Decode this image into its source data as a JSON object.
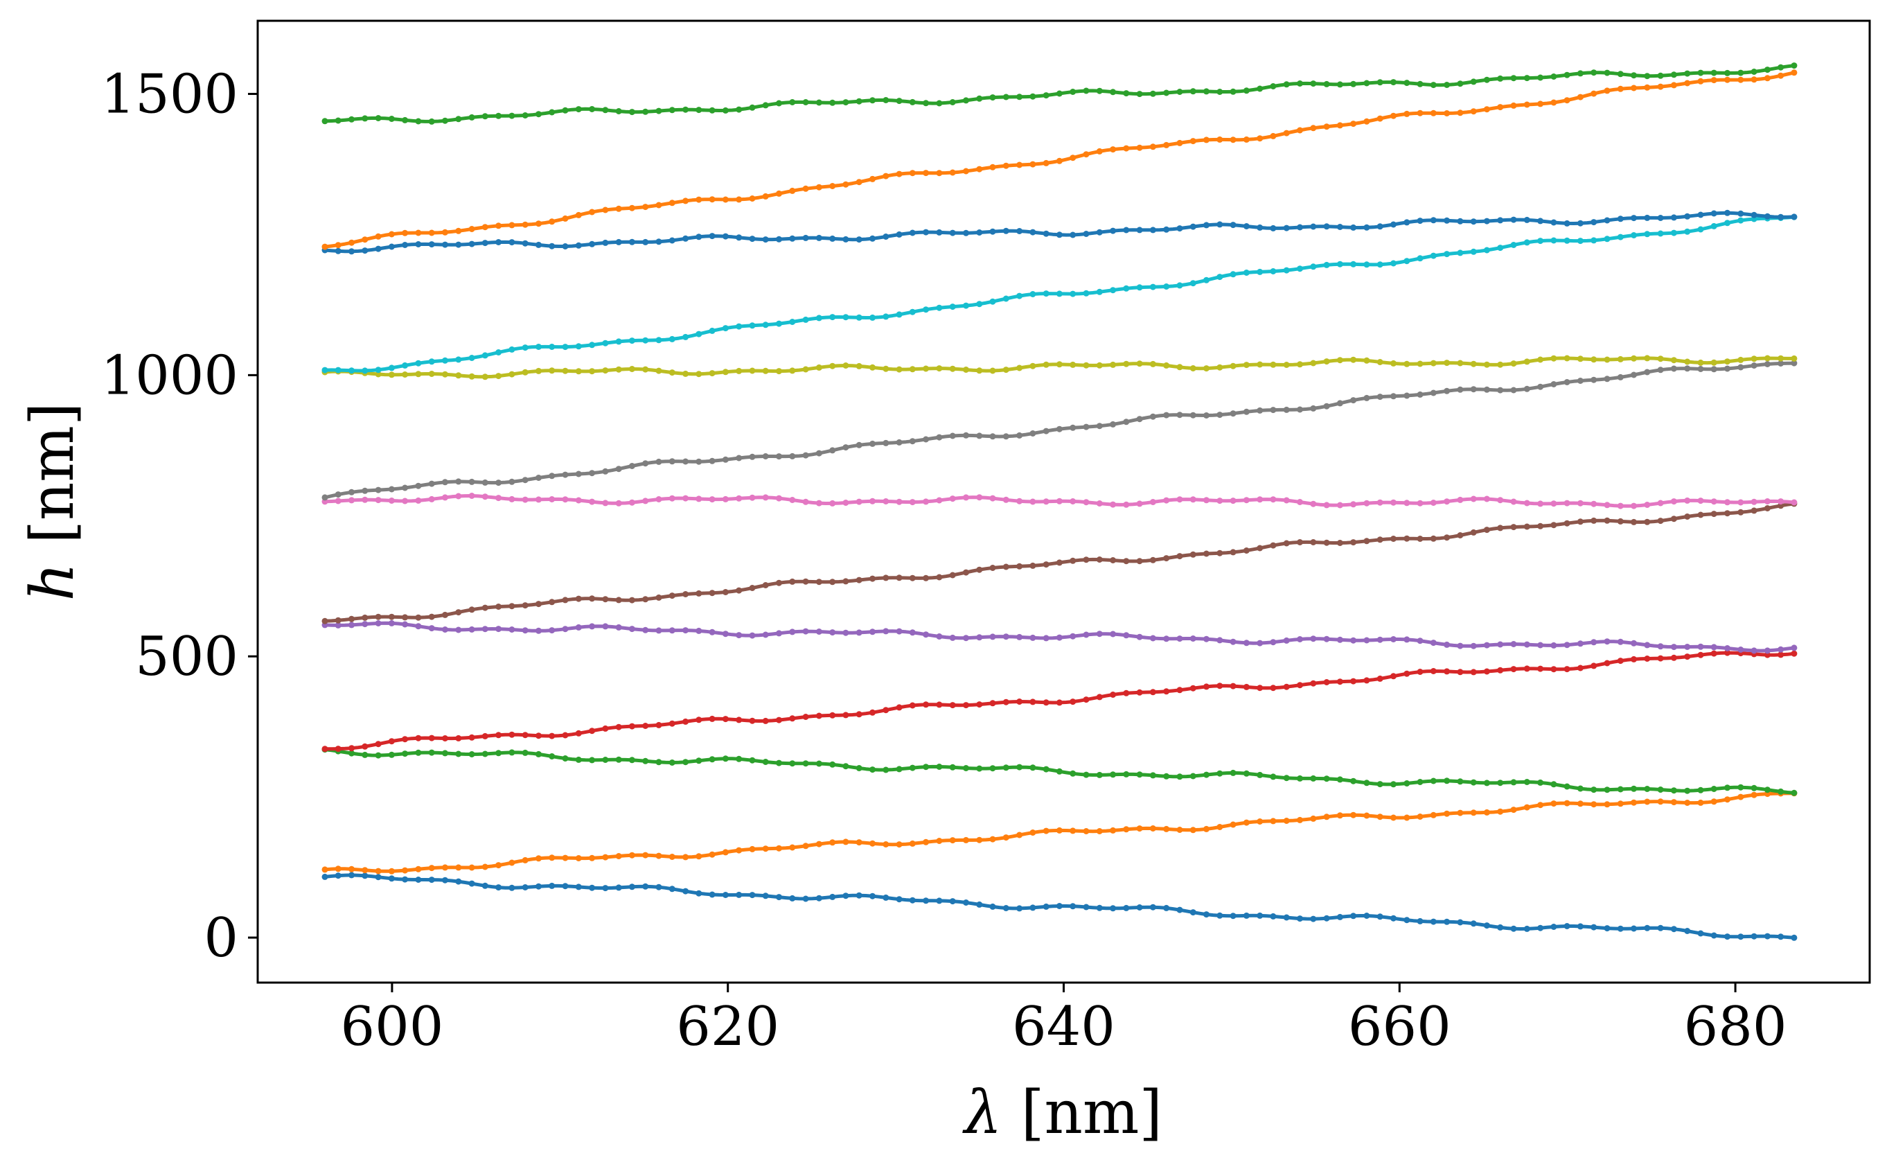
{
  "chart_data": {
    "type": "scatter",
    "xlabel": "λ [nm]",
    "ylabel": "h [nm]",
    "xlabel_symbol": "λ",
    "ylabel_symbol": "h",
    "unit": "[nm]",
    "xlim": [
      592,
      688
    ],
    "ylim": [
      -80,
      1630
    ],
    "xticks": [
      600,
      620,
      640,
      660,
      680
    ],
    "yticks": [
      0,
      500,
      1000,
      1500
    ],
    "grid": false,
    "legend": "none",
    "x_start": 596,
    "x_end": 683.5,
    "series": [
      {
        "color": "#1f77b4",
        "start": 108,
        "end": 2
      },
      {
        "color": "#ff7f0e",
        "start": 115,
        "end": 255
      },
      {
        "color": "#2ca02c",
        "start": 333,
        "end": 258
      },
      {
        "color": "#d62728",
        "start": 338,
        "end": 510
      },
      {
        "color": "#9467bd",
        "start": 555,
        "end": 515
      },
      {
        "color": "#8c564b",
        "start": 562,
        "end": 765
      },
      {
        "color": "#e377c2",
        "start": 780,
        "end": 772
      },
      {
        "color": "#7f7f7f",
        "start": 785,
        "end": 1025
      },
      {
        "color": "#bcbd22",
        "start": 1000,
        "end": 1030
      },
      {
        "color": "#17becf",
        "start": 1005,
        "end": 1280
      },
      {
        "color": "#1f77b4",
        "start": 1225,
        "end": 1285
      },
      {
        "color": "#ff7f0e",
        "start": 1230,
        "end": 1540
      },
      {
        "color": "#2ca02c",
        "start": 1450,
        "end": 1545
      }
    ]
  }
}
